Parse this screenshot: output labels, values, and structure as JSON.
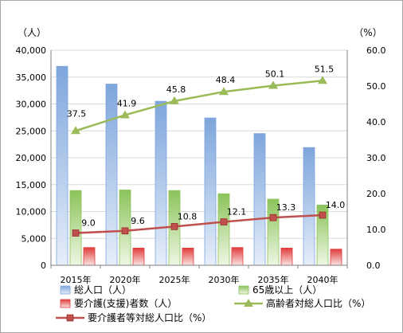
{
  "chart_data": {
    "type": "bar",
    "categories": [
      "2015年",
      "2020年",
      "2025年",
      "2030年",
      "2035年",
      "2040年"
    ],
    "y_left_unit": "（人）",
    "y_right_unit": "（%）",
    "y_left_ticks": [
      "0",
      "5,000",
      "10,000",
      "15,000",
      "20,000",
      "25,000",
      "30,000",
      "35,000",
      "40,000"
    ],
    "y_right_ticks": [
      "0.0",
      "10.0",
      "20.0",
      "30.0",
      "40.0",
      "50.0",
      "60.0"
    ],
    "ylim_left": [
      0,
      40000
    ],
    "ylim_right": [
      0,
      60
    ],
    "grid": true,
    "legend_position": "bottom",
    "series": [
      {
        "name": "総人口（人）",
        "type": "bar",
        "axis": "left",
        "color": "#7ea6dc",
        "values": [
          37000,
          33700,
          30500,
          27400,
          24500,
          21900
        ]
      },
      {
        "name": "65歳以上（人）",
        "type": "bar",
        "axis": "left",
        "color": "#8cc35a",
        "values": [
          13900,
          14000,
          13900,
          13300,
          12300,
          11200
        ]
      },
      {
        "name": "要介護(支援)者数（人）",
        "type": "bar",
        "axis": "left",
        "color": "#e03c3c",
        "values": [
          3300,
          3200,
          3200,
          3300,
          3200,
          3000
        ]
      },
      {
        "name": "高齢者対総人口比（%）",
        "type": "line",
        "axis": "right",
        "color": "#9bbb59",
        "values": [
          37.5,
          41.9,
          45.8,
          48.4,
          50.1,
          51.5
        ],
        "labels": [
          "37.5",
          "41.9",
          "45.8",
          "48.4",
          "50.1",
          "51.5"
        ]
      },
      {
        "name": "要介護者等対総人口比（%）",
        "type": "line",
        "axis": "right",
        "color": "#c0504d",
        "values": [
          9.0,
          9.6,
          10.8,
          12.1,
          13.3,
          14.0
        ],
        "labels": [
          "9.0",
          "9.6",
          "10.8",
          "12.1",
          "13.3",
          "14.0"
        ]
      }
    ]
  }
}
